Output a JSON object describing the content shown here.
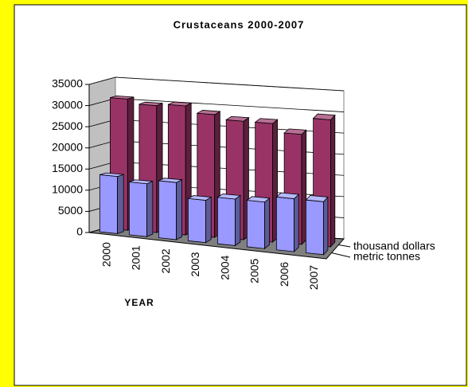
{
  "chart_data": {
    "type": "bar3d",
    "title": "Crustaceans 2000-2007",
    "x_label": "YEAR",
    "categories": [
      "2000",
      "2001",
      "2002",
      "2003",
      "2004",
      "2005",
      "2006",
      "2007"
    ],
    "series": [
      {
        "name": "metric tonnes",
        "color": "#9999ff",
        "values": [
          13500,
          12500,
          13500,
          10000,
          11000,
          11000,
          12500,
          12500
        ]
      },
      {
        "name": "thousand dollars",
        "color": "#993366",
        "values": [
          31000,
          30000,
          30500,
          29000,
          28000,
          28000,
          26000,
          30000
        ]
      }
    ],
    "ylim": [
      0,
      35000
    ],
    "yticks": [
      0,
      5000,
      10000,
      15000,
      20000,
      25000,
      30000,
      35000
    ],
    "grid": true
  }
}
